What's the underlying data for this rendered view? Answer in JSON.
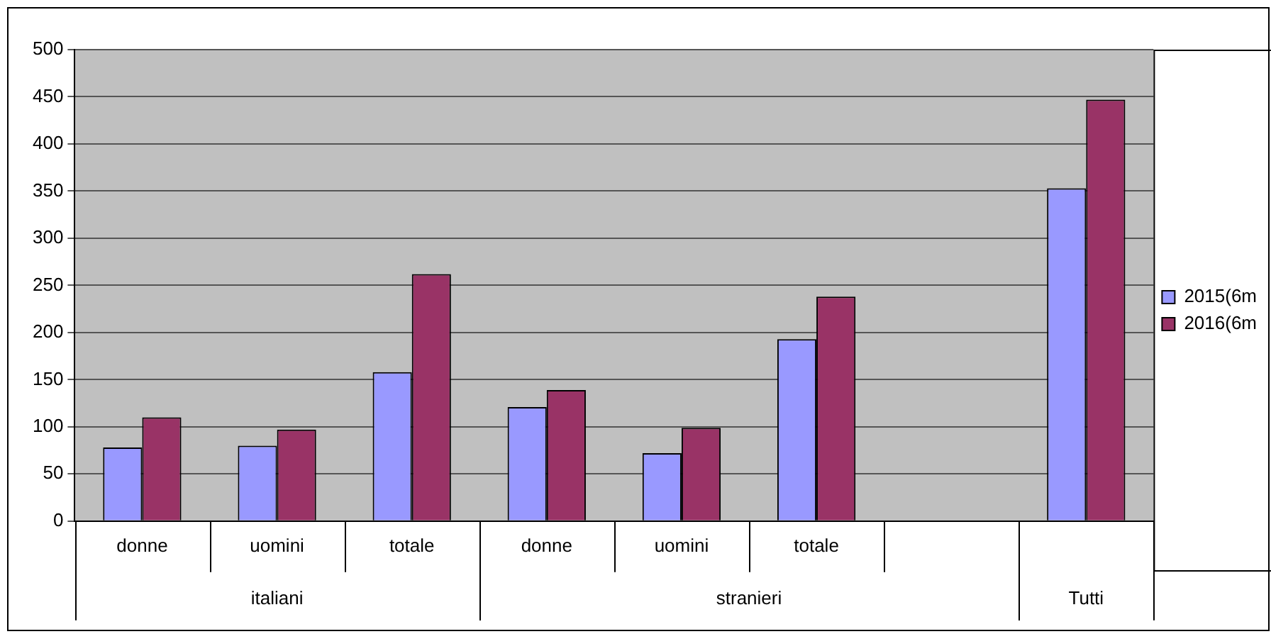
{
  "chart_data": {
    "type": "bar",
    "categories": [
      "donne",
      "uomini",
      "totale",
      "donne",
      "uomini",
      "totale",
      null,
      null
    ],
    "series": [
      {
        "name": "2015(6m",
        "color": "#9999ff",
        "values": [
          78,
          80,
          158,
          121,
          72,
          193,
          null,
          353
        ]
      },
      {
        "name": "2016(6m",
        "color": "#993366",
        "values": [
          110,
          97,
          262,
          139,
          99,
          238,
          null,
          447
        ]
      }
    ],
    "ylim": [
      0,
      500
    ],
    "yticks": [
      0,
      50,
      100,
      150,
      200,
      250,
      300,
      350,
      400,
      450,
      500
    ],
    "grid": "y",
    "legend": "right",
    "annotations": [
      "italiani",
      "stranieri",
      "Tutti"
    ]
  }
}
